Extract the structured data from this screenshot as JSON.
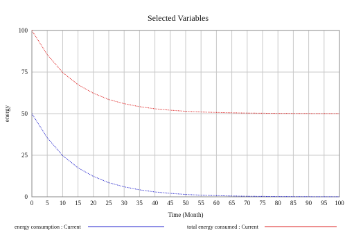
{
  "chart_data": {
    "type": "line",
    "title": "Selected Variables",
    "xlabel": "Time (Month)",
    "ylabel": "energy",
    "xlim": [
      0,
      100
    ],
    "ylim": [
      0,
      100
    ],
    "xticks": [
      "0",
      "5",
      "10",
      "15",
      "20",
      "25",
      "30",
      "35",
      "40",
      "45",
      "50",
      "55",
      "60",
      "65",
      "70",
      "75",
      "80",
      "85",
      "90",
      "95",
      "100"
    ],
    "yticks": [
      "0",
      "25",
      "50",
      "75",
      "100"
    ],
    "grid": true,
    "legend_position": "bottom",
    "x": [
      0,
      5,
      10,
      15,
      20,
      25,
      30,
      35,
      40,
      45,
      50,
      55,
      60,
      65,
      70,
      75,
      80,
      85,
      90,
      95,
      100
    ],
    "series": [
      {
        "name": "energy consumption : Current",
        "color": "#2222cc",
        "values": [
          50,
          35.5,
          24.8,
          17.4,
          12.3,
          8.5,
          6.0,
          4.2,
          2.9,
          2.1,
          1.4,
          1.0,
          0.7,
          0.5,
          0.35,
          0.25,
          0.17,
          0.12,
          0.08,
          0.06,
          0.04
        ]
      },
      {
        "name": "total energy consumed : Current",
        "color": "#dd2222",
        "values": [
          100,
          85.5,
          74.8,
          67.4,
          62.3,
          58.5,
          56.0,
          54.2,
          52.9,
          52.1,
          51.4,
          51.0,
          50.7,
          50.5,
          50.35,
          50.25,
          50.17,
          50.12,
          50.08,
          50.06,
          50.04
        ]
      }
    ]
  }
}
